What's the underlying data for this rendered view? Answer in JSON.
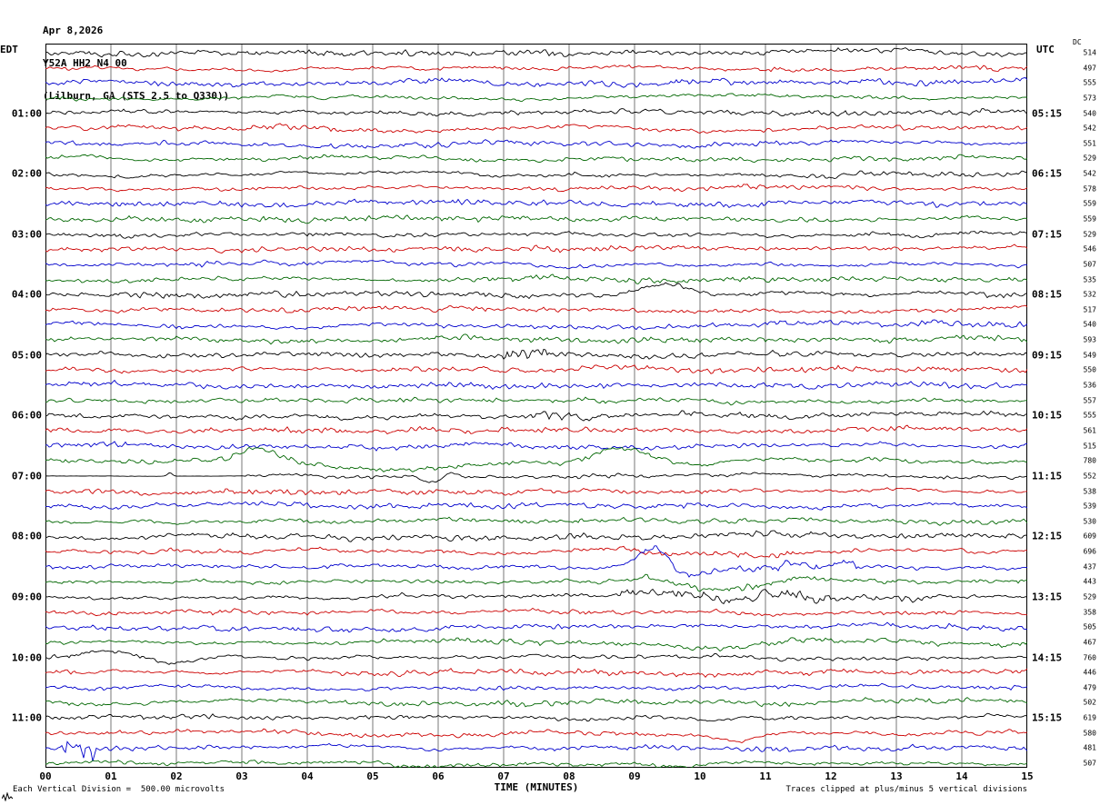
{
  "header": {
    "date": "Apr 8,2026",
    "station": "Y52A HH2 N4 00",
    "location": "(Lilburn, GA (STS 2.5 to Q330))",
    "left_tz": "EDT",
    "right_tz": "UTC",
    "dc_label": "DC"
  },
  "footer": {
    "xaxis_title": "TIME (MINUTES)",
    "scale_note": "Each Vertical Division =  500.00 microvolts",
    "clip_note": "Traces clipped at plus/minus 5 vertical divisions"
  },
  "chart_data": {
    "type": "line",
    "subtype": "helicorder-seismogram",
    "title": "Y52A HH2 N4 00 (Lilburn, GA (STS 2.5 to Q330)) Apr 8,2026",
    "xlabel": "TIME (MINUTES)",
    "x_range": [
      0,
      15
    ],
    "minutes_per_row": 15,
    "rows": 48,
    "grid": true,
    "trace_colors": [
      "#000000",
      "#cc0000",
      "#0000cc",
      "#006600"
    ],
    "x_ticks": [
      "00",
      "01",
      "02",
      "03",
      "04",
      "05",
      "06",
      "07",
      "08",
      "09",
      "10",
      "11",
      "12",
      "13",
      "14",
      "15"
    ],
    "left_hour_labels": [
      {
        "row": 4,
        "label": "01:00"
      },
      {
        "row": 8,
        "label": "02:00"
      },
      {
        "row": 12,
        "label": "03:00"
      },
      {
        "row": 16,
        "label": "04:00"
      },
      {
        "row": 20,
        "label": "05:00"
      },
      {
        "row": 24,
        "label": "06:00"
      },
      {
        "row": 28,
        "label": "07:00"
      },
      {
        "row": 32,
        "label": "08:00"
      },
      {
        "row": 36,
        "label": "09:00"
      },
      {
        "row": 40,
        "label": "10:00"
      },
      {
        "row": 44,
        "label": "11:00"
      }
    ],
    "right_utc_labels": [
      {
        "row": 4,
        "label": "05:15"
      },
      {
        "row": 8,
        "label": "06:15"
      },
      {
        "row": 12,
        "label": "07:15"
      },
      {
        "row": 16,
        "label": "08:15"
      },
      {
        "row": 20,
        "label": "09:15"
      },
      {
        "row": 24,
        "label": "10:15"
      },
      {
        "row": 28,
        "label": "11:15"
      },
      {
        "row": 32,
        "label": "12:15"
      },
      {
        "row": 36,
        "label": "13:15"
      },
      {
        "row": 40,
        "label": "14:15"
      },
      {
        "row": 44,
        "label": "15:15"
      }
    ],
    "dc_values": [
      514,
      497,
      555,
      573,
      540,
      542,
      551,
      529,
      542,
      578,
      559,
      559,
      529,
      546,
      507,
      535,
      532,
      517,
      540,
      593,
      549,
      550,
      536,
      557,
      555,
      561,
      515,
      780,
      552,
      538,
      539,
      530,
      609,
      696,
      437,
      443,
      529,
      358,
      505,
      467,
      760,
      446,
      479,
      502,
      619,
      580,
      481,
      507
    ],
    "events": [
      {
        "row": 16,
        "type": "pulse",
        "t": 9.45,
        "w": 0.45,
        "amp": -11
      },
      {
        "row": 20,
        "type": "burst",
        "t0": 7.0,
        "t1": 7.7,
        "gain": 2.6
      },
      {
        "row": 24,
        "type": "burst",
        "t0": 7.4,
        "t1": 8.5,
        "gain": 2.0
      },
      {
        "row": 27,
        "type": "pulse",
        "t": 3.2,
        "w": 0.38,
        "amp": -15
      },
      {
        "row": 27,
        "type": "pulse",
        "t": 5.6,
        "w": 1.2,
        "amp": 8
      },
      {
        "row": 27,
        "type": "pulse",
        "t": 8.8,
        "w": 0.5,
        "amp": -13
      },
      {
        "row": 27,
        "type": "pulse",
        "t": 9.9,
        "w": 0.45,
        "amp": 5
      },
      {
        "row": 28,
        "type": "quiet",
        "t0": 0,
        "t1": 3.0,
        "gain": 0.12
      },
      {
        "row": 28,
        "type": "pulse",
        "t": 1.9,
        "w": 0.05,
        "amp": -4
      },
      {
        "row": 28,
        "type": "pulse",
        "t": 5.9,
        "w": 0.2,
        "amp": 9
      },
      {
        "row": 28,
        "type": "pulse",
        "t": 6.2,
        "w": 0.12,
        "amp": -4
      },
      {
        "row": 33,
        "type": "burst",
        "t0": 9.0,
        "t1": 11.5,
        "gain": 1.6
      },
      {
        "row": 34,
        "type": "pulse",
        "t": 9.3,
        "w": 0.33,
        "amp": -22
      },
      {
        "row": 34,
        "type": "pulse",
        "t": 9.85,
        "w": 0.4,
        "amp": 10
      },
      {
        "row": 34,
        "type": "burst",
        "t0": 9.1,
        "t1": 12.5,
        "gain": 2.4
      },
      {
        "row": 35,
        "type": "pulse",
        "t": 9.3,
        "w": 0.3,
        "amp": -5
      },
      {
        "row": 35,
        "type": "pulse",
        "t": 10.2,
        "w": 0.9,
        "amp": 9
      },
      {
        "row": 35,
        "type": "burst",
        "t0": 9.0,
        "t1": 12.0,
        "gain": 1.6
      },
      {
        "row": 36,
        "type": "pulse",
        "t": 9.5,
        "w": 0.5,
        "amp": -7
      },
      {
        "row": 36,
        "type": "burst",
        "t0": 8.8,
        "t1": 12.0,
        "gain": 2.0
      },
      {
        "row": 39,
        "type": "pulse",
        "t": 10.3,
        "w": 0.7,
        "amp": 8
      },
      {
        "row": 40,
        "type": "pulse",
        "t": 1.1,
        "w": 0.5,
        "amp": -7
      },
      {
        "row": 40,
        "type": "pulse",
        "t": 2.0,
        "w": 0.6,
        "amp": 6
      },
      {
        "row": 40,
        "type": "pulse",
        "t": 2.8,
        "w": 0.4,
        "amp": -5
      },
      {
        "row": 45,
        "type": "pulse",
        "t": 10.6,
        "w": 0.4,
        "amp": 7
      },
      {
        "row": 46,
        "type": "burst",
        "t0": 0.25,
        "t1": 0.8,
        "gain": 5.5
      },
      {
        "row": 47,
        "type": "pulse",
        "t": 9.6,
        "w": 0.5,
        "amp": 6
      }
    ]
  }
}
